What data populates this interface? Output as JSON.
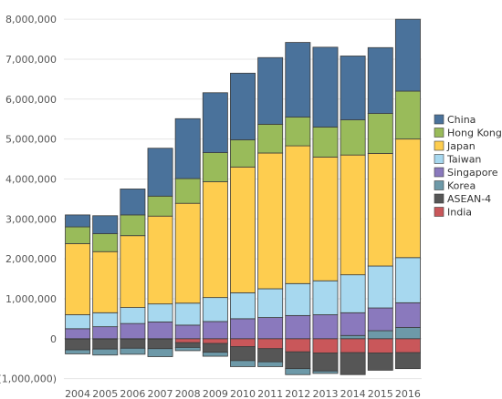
{
  "chart_data": {
    "type": "bar",
    "stacked": true,
    "categories": [
      "2004",
      "2005",
      "2006",
      "2007",
      "2008",
      "2009",
      "2010",
      "2011",
      "2012",
      "2013",
      "2014",
      "2015",
      "2016"
    ],
    "ylim": [
      -1100000,
      8300000
    ],
    "y_ticks": [
      -1000000,
      0,
      1000000,
      2000000,
      3000000,
      4000000,
      5000000,
      6000000,
      7000000,
      8000000
    ],
    "y_tick_labels": [
      "(1,000,000)",
      "0",
      "1,000,000",
      "2,000,000",
      "3,000,000",
      "4,000,000",
      "5,000,000",
      "6,000,000",
      "7,000,000",
      "8,000,000"
    ],
    "grid": true,
    "legend_position": "right",
    "legend_order": [
      "China",
      "Hong Kong",
      "Japan",
      "Taiwan",
      "Singapore",
      "Korea",
      "ASEAN-4",
      "India"
    ],
    "stack_order": [
      "India",
      "ASEAN-4",
      "Korea",
      "Singapore",
      "Taiwan",
      "Japan",
      "Hong Kong",
      "China"
    ],
    "series": [
      {
        "name": "China",
        "color": "#4a729b",
        "values": [
          300000,
          450000,
          650000,
          1200000,
          1500000,
          1500000,
          1670000,
          1670000,
          1870000,
          2000000,
          1600000,
          1650000,
          1800000
        ]
      },
      {
        "name": "Hong Kong",
        "color": "#99bb5a",
        "values": [
          420000,
          450000,
          520000,
          500000,
          620000,
          730000,
          680000,
          720000,
          720000,
          750000,
          880000,
          1000000,
          1200000
        ]
      },
      {
        "name": "Japan",
        "color": "#fecd4f",
        "values": [
          1780000,
          1530000,
          1800000,
          2200000,
          2500000,
          2900000,
          3150000,
          3400000,
          3450000,
          3100000,
          3000000,
          2820000,
          2970000
        ]
      },
      {
        "name": "Taiwan",
        "color": "#a7d8ef",
        "values": [
          350000,
          350000,
          400000,
          450000,
          550000,
          600000,
          650000,
          720000,
          800000,
          850000,
          950000,
          1050000,
          1130000
        ]
      },
      {
        "name": "Singapore",
        "color": "#8a79bd",
        "values": [
          250000,
          300000,
          380000,
          420000,
          340000,
          430000,
          500000,
          530000,
          580000,
          600000,
          570000,
          570000,
          620000
        ]
      },
      {
        "name": "Korea",
        "color": "#6d99a8",
        "values": [
          -100000,
          -150000,
          -150000,
          -200000,
          -80000,
          -100000,
          -150000,
          -120000,
          -150000,
          -60000,
          80000,
          200000,
          280000
        ]
      },
      {
        "name": "ASEAN-4",
        "color": "#565656",
        "values": [
          -270000,
          -250000,
          -230000,
          -240000,
          -120000,
          -220000,
          -350000,
          -330000,
          -420000,
          -450000,
          -550000,
          -430000,
          -400000
        ]
      },
      {
        "name": "India",
        "color": "#c9575a",
        "values": [
          -10000,
          -10000,
          -10000,
          -10000,
          -100000,
          -120000,
          -200000,
          -250000,
          -330000,
          -360000,
          -350000,
          -360000,
          -350000
        ]
      }
    ]
  }
}
